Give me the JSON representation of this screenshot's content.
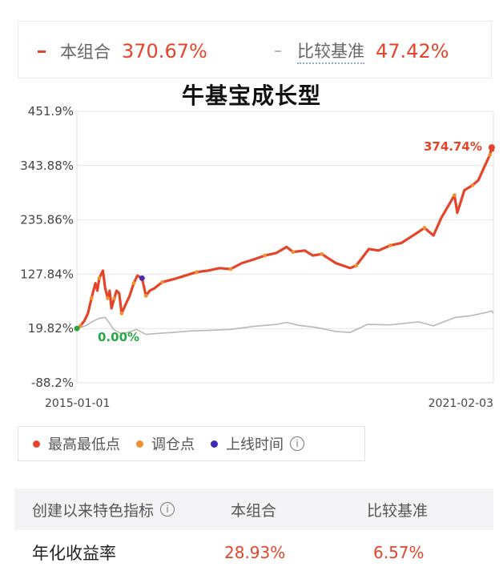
{
  "summary": {
    "portfolio": {
      "label": "本组合",
      "value": "370.67%",
      "color": "#e4452a"
    },
    "benchmark": {
      "label": "比较基准",
      "value": "47.42%",
      "color": "#b8b8b8"
    }
  },
  "title": "牛基宝成长型",
  "chart_data": {
    "type": "line",
    "y_ticks": [
      "451.9%",
      "343.88%",
      "235.86%",
      "127.84%",
      "19.82%",
      "-88.2%"
    ],
    "ylim": [
      -88.2,
      451.9
    ],
    "x_labels": [
      "2015-01-01",
      "2021-02-03"
    ],
    "xlim": [
      "2015-01-01",
      "2021-02-03"
    ],
    "grid": true,
    "series": [
      {
        "name": "本组合",
        "color": "#e4452a",
        "points": [
          [
            "2015-01-01",
            19.8
          ],
          [
            "2015-01-20",
            25
          ],
          [
            "2015-02-10",
            35
          ],
          [
            "2015-03-01",
            50
          ],
          [
            "2015-03-20",
            80
          ],
          [
            "2015-04-10",
            110
          ],
          [
            "2015-04-20",
            95
          ],
          [
            "2015-05-01",
            120
          ],
          [
            "2015-05-20",
            135
          ],
          [
            "2015-06-01",
            100
          ],
          [
            "2015-06-15",
            80
          ],
          [
            "2015-06-25",
            95
          ],
          [
            "2015-07-05",
            60
          ],
          [
            "2015-07-20",
            80
          ],
          [
            "2015-08-01",
            95
          ],
          [
            "2015-08-15",
            90
          ],
          [
            "2015-08-28",
            50
          ],
          [
            "2015-09-15",
            65
          ],
          [
            "2015-10-10",
            85
          ],
          [
            "2015-11-01",
            110
          ],
          [
            "2015-11-20",
            125
          ],
          [
            "2015-12-15",
            120
          ],
          [
            "2016-01-05",
            85
          ],
          [
            "2016-01-25",
            95
          ],
          [
            "2016-02-20",
            100
          ],
          [
            "2016-04-01",
            112
          ],
          [
            "2016-06-01",
            118
          ],
          [
            "2016-08-01",
            125
          ],
          [
            "2016-10-01",
            132
          ],
          [
            "2016-12-01",
            135
          ],
          [
            "2017-02-01",
            140
          ],
          [
            "2017-04-01",
            138
          ],
          [
            "2017-06-01",
            150
          ],
          [
            "2017-08-01",
            157
          ],
          [
            "2017-10-01",
            165
          ],
          [
            "2017-12-01",
            170
          ],
          [
            "2018-01-25",
            182
          ],
          [
            "2018-03-01",
            172
          ],
          [
            "2018-05-01",
            175
          ],
          [
            "2018-06-15",
            165
          ],
          [
            "2018-08-01",
            168
          ],
          [
            "2018-10-15",
            150
          ],
          [
            "2018-12-31",
            140
          ],
          [
            "2019-02-01",
            145
          ],
          [
            "2019-04-10",
            178
          ],
          [
            "2019-06-01",
            175
          ],
          [
            "2019-08-01",
            185
          ],
          [
            "2019-10-01",
            190
          ],
          [
            "2019-12-31",
            212
          ],
          [
            "2020-02-01",
            220
          ],
          [
            "2020-03-20",
            205
          ],
          [
            "2020-05-01",
            240
          ],
          [
            "2020-07-10",
            285
          ],
          [
            "2020-07-25",
            250
          ],
          [
            "2020-09-01",
            295
          ],
          [
            "2020-10-15",
            305
          ],
          [
            "2020-11-15",
            315
          ],
          [
            "2020-12-15",
            340
          ],
          [
            "2021-01-15",
            365
          ],
          [
            "2021-01-25",
            380
          ],
          [
            "2021-02-03",
            372
          ]
        ]
      },
      {
        "name": "比较基准",
        "color": "#b8b8b8",
        "points": [
          [
            "2015-01-01",
            19.8
          ],
          [
            "2015-02-15",
            25
          ],
          [
            "2015-04-01",
            35
          ],
          [
            "2015-05-01",
            40
          ],
          [
            "2015-06-01",
            42
          ],
          [
            "2015-06-25",
            30
          ],
          [
            "2015-07-15",
            18
          ],
          [
            "2015-08-25",
            10
          ],
          [
            "2015-10-01",
            12
          ],
          [
            "2015-11-15",
            18
          ],
          [
            "2016-01-05",
            8
          ],
          [
            "2016-03-01",
            10
          ],
          [
            "2016-06-01",
            12
          ],
          [
            "2016-09-01",
            15
          ],
          [
            "2016-12-01",
            16
          ],
          [
            "2017-04-01",
            18
          ],
          [
            "2017-08-01",
            24
          ],
          [
            "2017-12-01",
            28
          ],
          [
            "2018-01-25",
            32
          ],
          [
            "2018-04-01",
            26
          ],
          [
            "2018-07-01",
            22
          ],
          [
            "2018-10-15",
            14
          ],
          [
            "2018-12-31",
            12
          ],
          [
            "2019-04-01",
            28
          ],
          [
            "2019-08-01",
            27
          ],
          [
            "2019-12-31",
            33
          ],
          [
            "2020-03-20",
            25
          ],
          [
            "2020-07-15",
            42
          ],
          [
            "2020-10-01",
            45
          ],
          [
            "2020-12-31",
            52
          ],
          [
            "2021-01-25",
            55
          ],
          [
            "2021-02-03",
            50
          ]
        ]
      }
    ],
    "annotations": [
      {
        "label": "374.74%",
        "x": "2021-01-25",
        "y": 380,
        "color": "#e4452a"
      },
      {
        "label": "0.00%",
        "x": "2015-01-01",
        "y": 19.8,
        "color": "#27a844"
      }
    ],
    "markers": [
      {
        "type": "high",
        "x": "2021-01-25",
        "y": 380,
        "color": "#e4452a"
      },
      {
        "type": "low",
        "x": "2015-01-01",
        "y": 19.8,
        "color": "#27a844"
      },
      {
        "type": "online",
        "x": "2015-12-15",
        "y": 120,
        "color": "#4b2bb0"
      }
    ]
  },
  "legend": {
    "items": [
      {
        "label": "最高最低点",
        "color": "#e4452a"
      },
      {
        "label": "调仓点",
        "color": "#f0912e"
      },
      {
        "label": "上线时间",
        "color": "#3f2bb8"
      }
    ],
    "info_icon": "info-circle-icon"
  },
  "table": {
    "header": [
      "创建以来特色指标",
      "本组合",
      "比较基准"
    ],
    "rows": [
      {
        "label": "年化收益率",
        "portfolio": "28.93%",
        "benchmark": "6.57%"
      }
    ]
  }
}
